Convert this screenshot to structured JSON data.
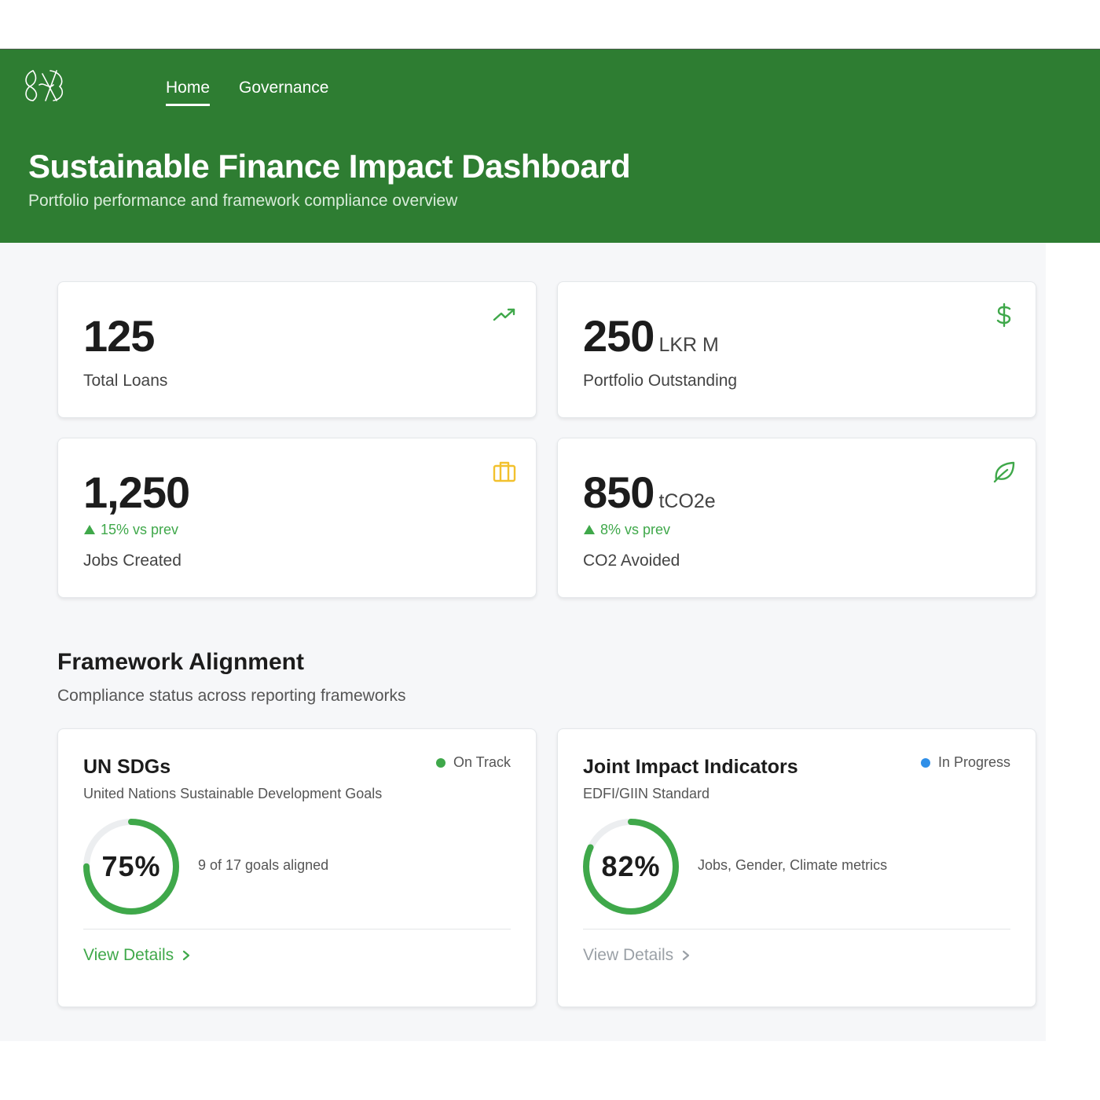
{
  "nav": {
    "items": [
      {
        "label": "Home",
        "active": true
      },
      {
        "label": "Governance",
        "active": false
      }
    ]
  },
  "header": {
    "title": "Sustainable Finance Impact Dashboard",
    "subtitle": "Portfolio performance and framework compliance overview",
    "color": "#2e7d32"
  },
  "stats": [
    {
      "value": "125",
      "unit": "",
      "label": "Total Loans",
      "trend": "",
      "icon": "trending-up-icon",
      "icon_color": "#3fa84a"
    },
    {
      "value": "250",
      "unit": "LKR M",
      "label": "Portfolio Outstanding",
      "trend": "",
      "icon": "dollar-icon",
      "icon_color": "#3fa84a"
    },
    {
      "value": "1,250",
      "unit": "",
      "label": "Jobs Created",
      "trend": "15% vs prev",
      "icon": "briefcase-icon",
      "icon_color": "#f2c12e"
    },
    {
      "value": "850",
      "unit": "tCO2e",
      "label": "CO2 Avoided",
      "trend": "8% vs prev",
      "icon": "leaf-icon",
      "icon_color": "#3fa84a"
    }
  ],
  "section": {
    "title": "Framework Alignment",
    "subtitle": "Compliance status across reporting frameworks"
  },
  "frameworks": [
    {
      "title": "UN SDGs",
      "subtitle": "United Nations Sustainable Development Goals",
      "status": "On Track",
      "status_color": "#3fa84a",
      "percent": 75,
      "percent_label": "75%",
      "description": "9 of 17 goals aligned",
      "link": "View Details",
      "link_color": "#3fa84a"
    },
    {
      "title": "Joint Impact Indicators",
      "subtitle": "EDFI/GIIN Standard",
      "status": "In Progress",
      "status_color": "#2f8fe8",
      "percent": 82,
      "percent_label": "82%",
      "description": "Jobs, Gender, Climate metrics",
      "link": "View Details",
      "link_color": "#9aa0a6"
    }
  ]
}
